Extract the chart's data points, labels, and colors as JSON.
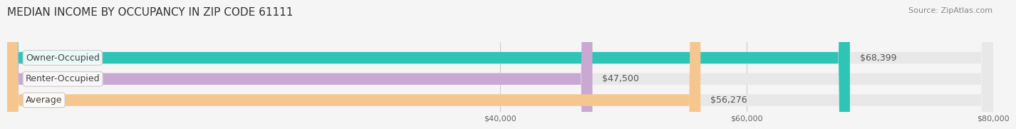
{
  "title": "MEDIAN INCOME BY OCCUPANCY IN ZIP CODE 61111",
  "source": "Source: ZipAtlas.com",
  "categories": [
    "Owner-Occupied",
    "Renter-Occupied",
    "Average"
  ],
  "values": [
    68399,
    47500,
    56276
  ],
  "labels": [
    "$68,399",
    "$47,500",
    "$56,276"
  ],
  "bar_colors": [
    "#2ec4b6",
    "#c9a8d4",
    "#f5c78e"
  ],
  "background_color": "#f5f5f5",
  "bar_bg_color": "#e8e8e8",
  "xlim": [
    0,
    80000
  ],
  "xticks": [
    40000,
    60000,
    80000
  ],
  "xtick_labels": [
    "$40,000",
    "$60,000",
    "$80,000"
  ],
  "title_fontsize": 11,
  "source_fontsize": 8,
  "label_fontsize": 9,
  "category_fontsize": 9,
  "bar_height": 0.55
}
